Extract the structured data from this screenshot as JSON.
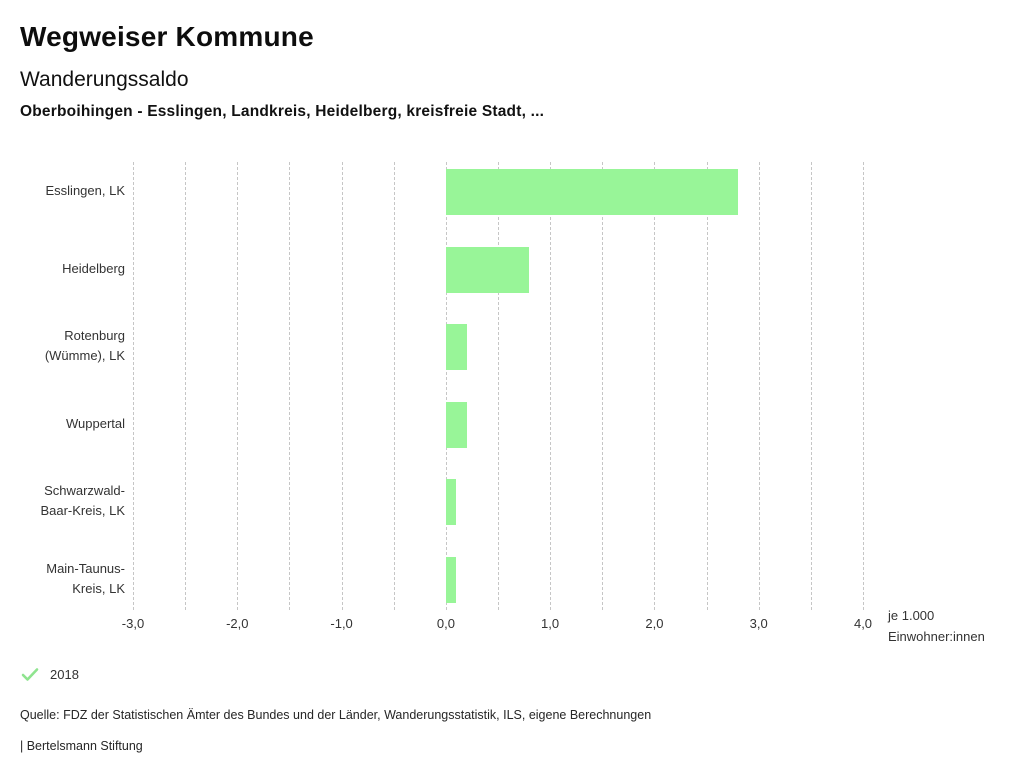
{
  "header": {
    "app_title": "Wegweiser Kommune",
    "chart_title": "Wanderungssaldo",
    "chart_subtitle": "Oberboihingen - Esslingen, Landkreis, Heidelberg, kreisfreie Stadt, ..."
  },
  "chart_data": {
    "type": "bar",
    "orientation": "horizontal",
    "title": "Wanderungssaldo",
    "categories": [
      "Esslingen, LK",
      "Heidelberg",
      "Rotenburg (Wümme), LK",
      "Wuppertal",
      "Schwarzwald-Baar-Kreis, LK",
      "Main-Taunus-Kreis, LK"
    ],
    "category_label_lines": [
      [
        "Esslingen, LK"
      ],
      [
        "Heidelberg"
      ],
      [
        "Rotenburg",
        "(Wümme), LK"
      ],
      [
        "Wuppertal"
      ],
      [
        "Schwarzwald-",
        "Baar-Kreis, LK"
      ],
      [
        "Main-Taunus-",
        "Kreis, LK"
      ]
    ],
    "series": [
      {
        "name": "2018",
        "values": [
          2.8,
          0.8,
          0.2,
          0.2,
          0.1,
          0.1
        ]
      }
    ],
    "xlim": [
      -3.0,
      4.0
    ],
    "x_ticks": [
      -3,
      -2,
      -1,
      0,
      1,
      2,
      3,
      4
    ],
    "x_tick_labels": [
      "-3,0",
      "-2,0",
      "-1,0",
      "0,0",
      "1,0",
      "2,0",
      "3,0",
      "4,0"
    ],
    "gridline_step": 0.5,
    "grid": true,
    "unit_label_lines": [
      "je 1.000",
      "Einwohner:innen"
    ],
    "xlabel": "je 1.000 Einwohner:innen",
    "ylabel": "",
    "bar_color": "#98f598",
    "gridline_color": "#c6c6c6",
    "legend_position": "bottom-left"
  },
  "legend": {
    "items": [
      {
        "label": "2018",
        "icon": "check-icon",
        "color": "#8fe48f"
      }
    ]
  },
  "footer": {
    "source": "Quelle: FDZ der Statistischen Ämter des Bundes und der Länder, Wanderungsstatistik, ILS, eigene Berechnungen",
    "attribution": "| Bertelsmann Stiftung"
  }
}
